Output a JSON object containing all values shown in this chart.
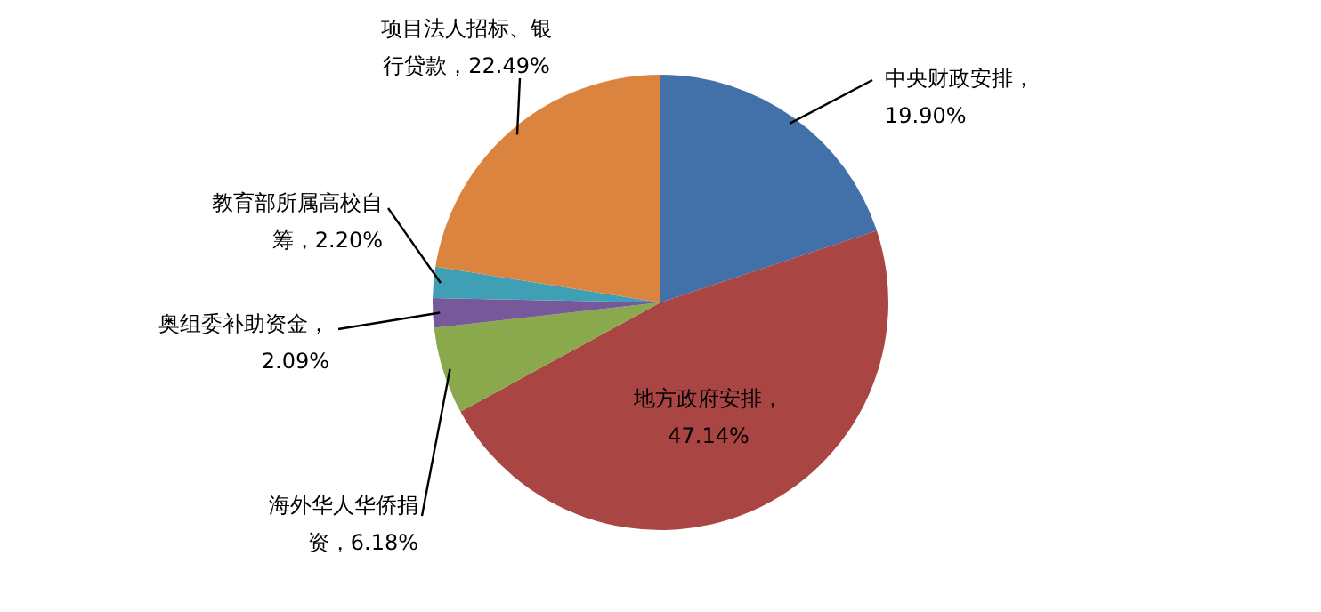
{
  "chart_data": {
    "type": "pie",
    "categories": [
      "中央财政安排",
      "地方政府安排",
      "海外华人华侨捐资",
      "奥组委补助资金",
      "教育部所属高校自筹",
      "项目法人招标、银行贷款"
    ],
    "values": [
      19.9,
      47.14,
      6.18,
      2.09,
      2.2,
      22.49
    ],
    "value_labels": [
      "，19.90%",
      "，47.14%",
      "，6.18%",
      "，2.09%",
      "，2.20%",
      "，22.49%"
    ],
    "colors": [
      "#4270a8",
      "#a94543",
      "#8aa84c",
      "#77589b",
      "#3f9fb5",
      "#db8440"
    ]
  }
}
